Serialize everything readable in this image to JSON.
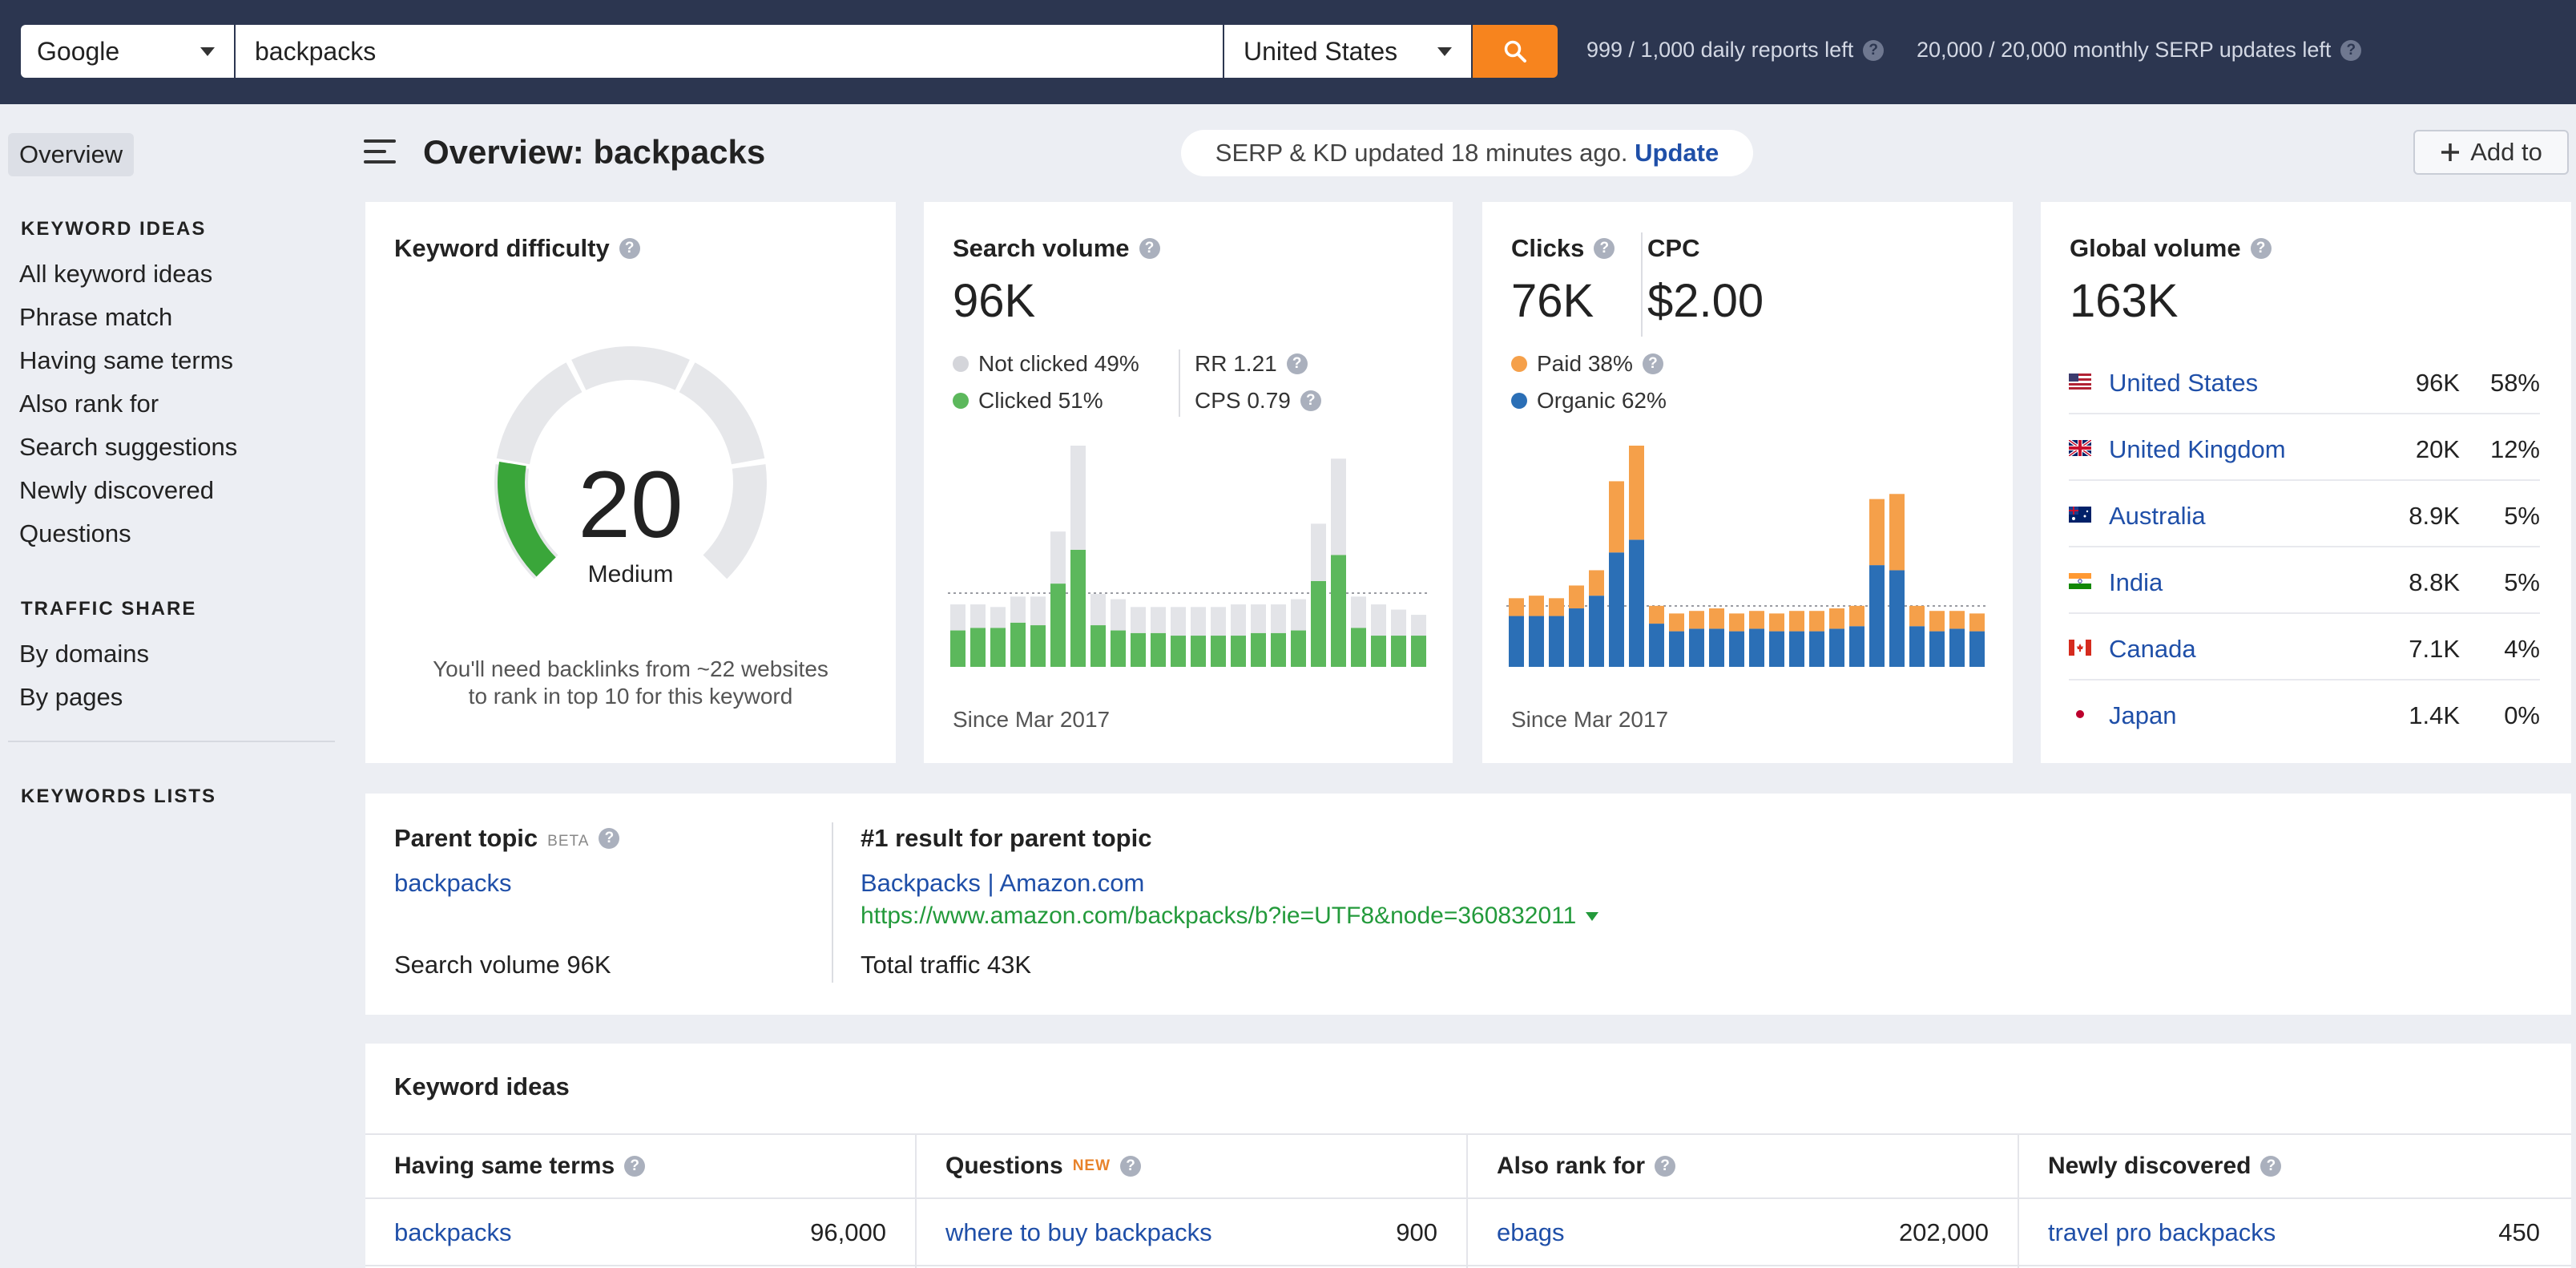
{
  "topbar": {
    "engine": "Google",
    "search_value": "backpacks",
    "search_placeholder": "",
    "country": "United States",
    "daily_reports": "999 / 1,000 daily reports left",
    "monthly_updates": "20,000 / 20,000 monthly SERP updates left"
  },
  "sidebar": {
    "overview": "Overview",
    "keyword_ideas_heading": "KEYWORD IDEAS",
    "keyword_ideas": [
      "All keyword ideas",
      "Phrase match",
      "Having same terms",
      "Also rank for",
      "Search suggestions",
      "Newly discovered",
      "Questions"
    ],
    "traffic_share_heading": "TRAFFIC SHARE",
    "traffic_share": [
      "By domains",
      "By pages"
    ],
    "keywords_lists_heading": "KEYWORDS LISTS"
  },
  "header": {
    "title": "Overview: backpacks",
    "update_status": "SERP & KD updated 18 minutes ago.",
    "update_link": "Update",
    "add_to": "Add to"
  },
  "difficulty": {
    "title": "Keyword difficulty",
    "score": "20",
    "score_value": 20,
    "label": "Medium",
    "note_line1": "You'll need backlinks from ~22 websites",
    "note_line2": "to rank in top 10 for this keyword",
    "color": "#3aa63a"
  },
  "search_volume": {
    "title": "Search volume",
    "value": "96K",
    "not_clicked": "Not clicked 49%",
    "clicked": "Clicked 51%",
    "rr": "RR 1.21",
    "cps": "CPS 0.79",
    "since": "Since Mar 2017",
    "colors": {
      "clicked": "#5cb85c",
      "not_clicked": "#e3e4e8"
    }
  },
  "clicks": {
    "title": "Clicks",
    "value": "76K",
    "cpc_title": "CPC",
    "cpc_value": "$2.00",
    "paid": "Paid 38%",
    "organic": "Organic 62%",
    "since": "Since Mar 2017",
    "colors": {
      "paid": "#f5a04a",
      "organic": "#2b6fb6"
    }
  },
  "global_volume": {
    "title": "Global volume",
    "value": "163K",
    "countries": [
      {
        "name": "United States",
        "volume": "96K",
        "share": "58%"
      },
      {
        "name": "United Kingdom",
        "volume": "20K",
        "share": "12%"
      },
      {
        "name": "Australia",
        "volume": "8.9K",
        "share": "5%"
      },
      {
        "name": "India",
        "volume": "8.8K",
        "share": "5%"
      },
      {
        "name": "Canada",
        "volume": "7.1K",
        "share": "4%"
      },
      {
        "name": "Japan",
        "volume": "1.4K",
        "share": "0%"
      }
    ]
  },
  "parent_topic": {
    "title": "Parent topic",
    "beta": "BETA",
    "keyword": "backpacks",
    "search_volume": "Search volume 96K",
    "result_title": "#1 result for parent topic",
    "result_link": "Backpacks | Amazon.com",
    "result_url": "https://www.amazon.com/backpacks/b?ie=UTF8&node=360832011",
    "total_traffic": "Total traffic 43K"
  },
  "keyword_ideas": {
    "title": "Keyword ideas",
    "columns": [
      {
        "header": "Having same terms",
        "badge": "",
        "keyword": "backpacks",
        "volume": "96,000"
      },
      {
        "header": "Questions",
        "badge": "NEW",
        "keyword": "where to buy backpacks",
        "volume": "900"
      },
      {
        "header": "Also rank for",
        "badge": "",
        "keyword": "ebags",
        "volume": "202,000"
      },
      {
        "header": "Newly discovered",
        "badge": "",
        "keyword": "travel pro backpacks",
        "volume": "450"
      }
    ]
  },
  "chart_data": [
    {
      "type": "bar",
      "name": "search-volume-history",
      "stacked": true,
      "series": [
        {
          "name": "Clicked",
          "values": [
            14,
            15,
            15,
            17,
            16,
            32,
            45,
            16,
            14,
            13,
            13,
            12,
            12,
            12,
            12,
            13,
            13,
            14,
            33,
            43,
            15,
            12,
            12,
            12
          ]
        },
        {
          "name": "Not clicked",
          "values": [
            10,
            9,
            8,
            10,
            11,
            20,
            40,
            12,
            12,
            10,
            10,
            11,
            11,
            11,
            12,
            11,
            11,
            12,
            22,
            37,
            12,
            12,
            10,
            8
          ]
        }
      ]
    },
    {
      "type": "bar",
      "name": "clicks-history",
      "stacked": true,
      "series": [
        {
          "name": "Organic",
          "values": [
            20,
            20,
            20,
            23,
            28,
            45,
            50,
            17,
            14,
            15,
            15,
            14,
            15,
            14,
            14,
            14,
            15,
            16,
            40,
            38,
            16,
            14,
            15,
            14
          ]
        },
        {
          "name": "Paid",
          "values": [
            7,
            8,
            7,
            9,
            10,
            28,
            37,
            7,
            7,
            7,
            8,
            7,
            7,
            7,
            8,
            8,
            8,
            8,
            26,
            30,
            8,
            8,
            7,
            7
          ]
        }
      ]
    }
  ]
}
